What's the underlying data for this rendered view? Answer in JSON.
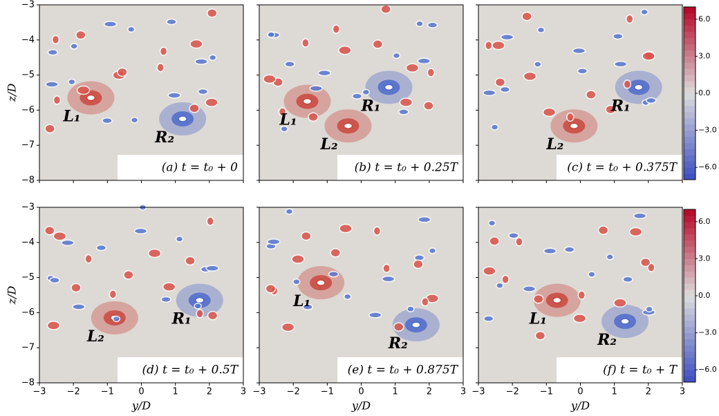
{
  "chart_data": [
    {
      "type": "contour",
      "title": "(a) t = t₀ + 0",
      "background": "#ddd9d5",
      "ylabel": "z/D",
      "xlim": [
        -3,
        3
      ],
      "ylim": [
        -8,
        -3
      ],
      "xticks": [
        {
          "value": -3,
          "label": "−3"
        },
        {
          "value": -2,
          "label": "−2"
        },
        {
          "value": -1,
          "label": "−1"
        },
        0,
        1,
        2,
        3
      ],
      "yticks": [
        {
          "value": -3,
          "label": "−3"
        },
        {
          "value": -4,
          "label": "−4"
        },
        {
          "value": -5,
          "label": "−5"
        },
        {
          "value": -6,
          "label": "−6"
        },
        {
          "value": -7,
          "label": "−7"
        },
        {
          "value": -8,
          "label": "−8"
        }
      ],
      "annotations": [
        {
          "text": "L₁",
          "x": -2.3,
          "y": -6.2,
          "color": "#c8423a"
        },
        {
          "text": "R₂",
          "x": 0.4,
          "y": -6.8,
          "color": "#4a68c9"
        }
      ]
    },
    {
      "type": "contour",
      "title": "(b) t = t₀ + 0.25T",
      "background": "#ddd9d5",
      "xlim": [
        -3,
        3
      ],
      "ylim": [
        -8,
        -3
      ],
      "xticks": [
        {
          "value": -3,
          "label": "−3"
        },
        {
          "value": -2,
          "label": "−2"
        },
        {
          "value": -1,
          "label": "−1"
        },
        0,
        1,
        2,
        3
      ],
      "yticks": [
        {
          "value": -3,
          "label": "−3"
        },
        {
          "value": -4,
          "label": "−4"
        },
        {
          "value": -5,
          "label": "−5"
        },
        {
          "value": -6,
          "label": "−6"
        },
        {
          "value": -7,
          "label": "−7"
        },
        {
          "value": -8,
          "label": "−8"
        }
      ],
      "annotations": [
        {
          "text": "L₁",
          "x": -2.4,
          "y": -6.3,
          "color": "#c8423a"
        },
        {
          "text": "R₁",
          "x": 0.0,
          "y": -5.9,
          "color": "#4a68c9"
        },
        {
          "text": "L₂",
          "x": -1.2,
          "y": -7.0,
          "color": "#c8423a"
        }
      ]
    },
    {
      "type": "contour",
      "title": "(c) t = t₀ + 0.375T",
      "background": "#ddd9d5",
      "xlim": [
        -3,
        3
      ],
      "ylim": [
        -8,
        -3
      ],
      "xticks": [
        {
          "value": -3,
          "label": "−3"
        },
        {
          "value": -2,
          "label": "−2"
        },
        {
          "value": -1,
          "label": "−1"
        },
        0,
        1,
        2,
        3
      ],
      "yticks": [
        {
          "value": -3,
          "label": "−3"
        },
        {
          "value": -4,
          "label": "−4"
        },
        {
          "value": -5,
          "label": "−5"
        },
        {
          "value": -6,
          "label": "−6"
        },
        {
          "value": -7,
          "label": "−7"
        },
        {
          "value": -8,
          "label": "−8"
        }
      ],
      "annotations": [
        {
          "text": "R₁",
          "x": 0.9,
          "y": -5.9,
          "color": "#4a68c9"
        },
        {
          "text": "L₂",
          "x": -1.0,
          "y": -7.0,
          "color": "#c8423a"
        }
      ],
      "colorbar": {
        "clim": [
          -7,
          7
        ],
        "colors": [
          "#3b4cc0",
          "#dcdcdc",
          "#b40426"
        ],
        "ticks": [
          {
            "value": 6,
            "label": "6.0"
          },
          {
            "value": 3,
            "label": "3.0"
          },
          {
            "value": 0,
            "label": "0.0"
          },
          {
            "value": -3,
            "label": "−3.0"
          },
          {
            "value": -6,
            "label": "−6.0"
          }
        ]
      }
    },
    {
      "type": "contour",
      "title": "(d) t = t₀ + 0.5T",
      "background": "#ddd9d5",
      "xlabel": "y/D",
      "ylabel": "z/D",
      "xlim": [
        -3,
        3
      ],
      "ylim": [
        -8,
        -3
      ],
      "xticks": [
        {
          "value": -3,
          "label": "−3"
        },
        {
          "value": -2,
          "label": "−2"
        },
        {
          "value": -1,
          "label": "−1"
        },
        0,
        1,
        2,
        3
      ],
      "yticks": [
        {
          "value": -3,
          "label": "−3"
        },
        {
          "value": -4,
          "label": "−4"
        },
        {
          "value": -5,
          "label": "−5"
        },
        {
          "value": -6,
          "label": "−6"
        },
        {
          "value": -7,
          "label": "−7"
        },
        {
          "value": -8,
          "label": "−8"
        }
      ],
      "annotations": [
        {
          "text": "L₂",
          "x": -1.6,
          "y": -6.7,
          "color": "#c8423a"
        },
        {
          "text": "R₁",
          "x": 0.9,
          "y": -6.2,
          "color": "#4a68c9"
        }
      ]
    },
    {
      "type": "contour",
      "title": "(e) t = t₀ + 0.875T",
      "background": "#ddd9d5",
      "xlabel": "y/D",
      "xlim": [
        -3,
        3
      ],
      "ylim": [
        -8,
        -3
      ],
      "xticks": [
        {
          "value": -3,
          "label": "−3"
        },
        {
          "value": -2,
          "label": "−2"
        },
        {
          "value": -1,
          "label": "−1"
        },
        0,
        1,
        2,
        3
      ],
      "yticks": [
        {
          "value": -3,
          "label": "−3"
        },
        {
          "value": -4,
          "label": "−4"
        },
        {
          "value": -5,
          "label": "−5"
        },
        {
          "value": -6,
          "label": "−6"
        },
        {
          "value": -7,
          "label": "−7"
        },
        {
          "value": -8,
          "label": "−8"
        }
      ],
      "annotations": [
        {
          "text": "L₁",
          "x": -2.0,
          "y": -5.7,
          "color": "#c8423a"
        },
        {
          "text": "R₂",
          "x": 0.8,
          "y": -6.9,
          "color": "#4a68c9"
        }
      ]
    },
    {
      "type": "contour",
      "title": "(f) t = t₀ + T",
      "background": "#ddd9d5",
      "xlabel": "y/D",
      "xlim": [
        -3,
        3
      ],
      "ylim": [
        -8,
        -3
      ],
      "xticks": [
        {
          "value": -3,
          "label": "−3"
        },
        {
          "value": -2,
          "label": "−2"
        },
        {
          "value": -1,
          "label": "−1"
        },
        0,
        1,
        2,
        3
      ],
      "yticks": [
        {
          "value": -3,
          "label": "−3"
        },
        {
          "value": -4,
          "label": "−4"
        },
        {
          "value": -5,
          "label": "−5"
        },
        {
          "value": -6,
          "label": "−6"
        },
        {
          "value": -7,
          "label": "−7"
        },
        {
          "value": -8,
          "label": "−8"
        }
      ],
      "annotations": [
        {
          "text": "L₁",
          "x": -1.5,
          "y": -6.2,
          "color": "#c8423a"
        },
        {
          "text": "R₂",
          "x": 0.5,
          "y": -6.8,
          "color": "#4a68c9"
        }
      ],
      "colorbar": {
        "clim": [
          -7,
          7
        ],
        "colors": [
          "#3b4cc0",
          "#dcdcdc",
          "#b40426"
        ],
        "ticks": [
          {
            "value": 6,
            "label": "6.0"
          },
          {
            "value": 3,
            "label": "3.0"
          },
          {
            "value": 0,
            "label": "0.0"
          },
          {
            "value": -3,
            "label": "−3.0"
          },
          {
            "value": -6,
            "label": "−6.0"
          }
        ]
      }
    }
  ]
}
